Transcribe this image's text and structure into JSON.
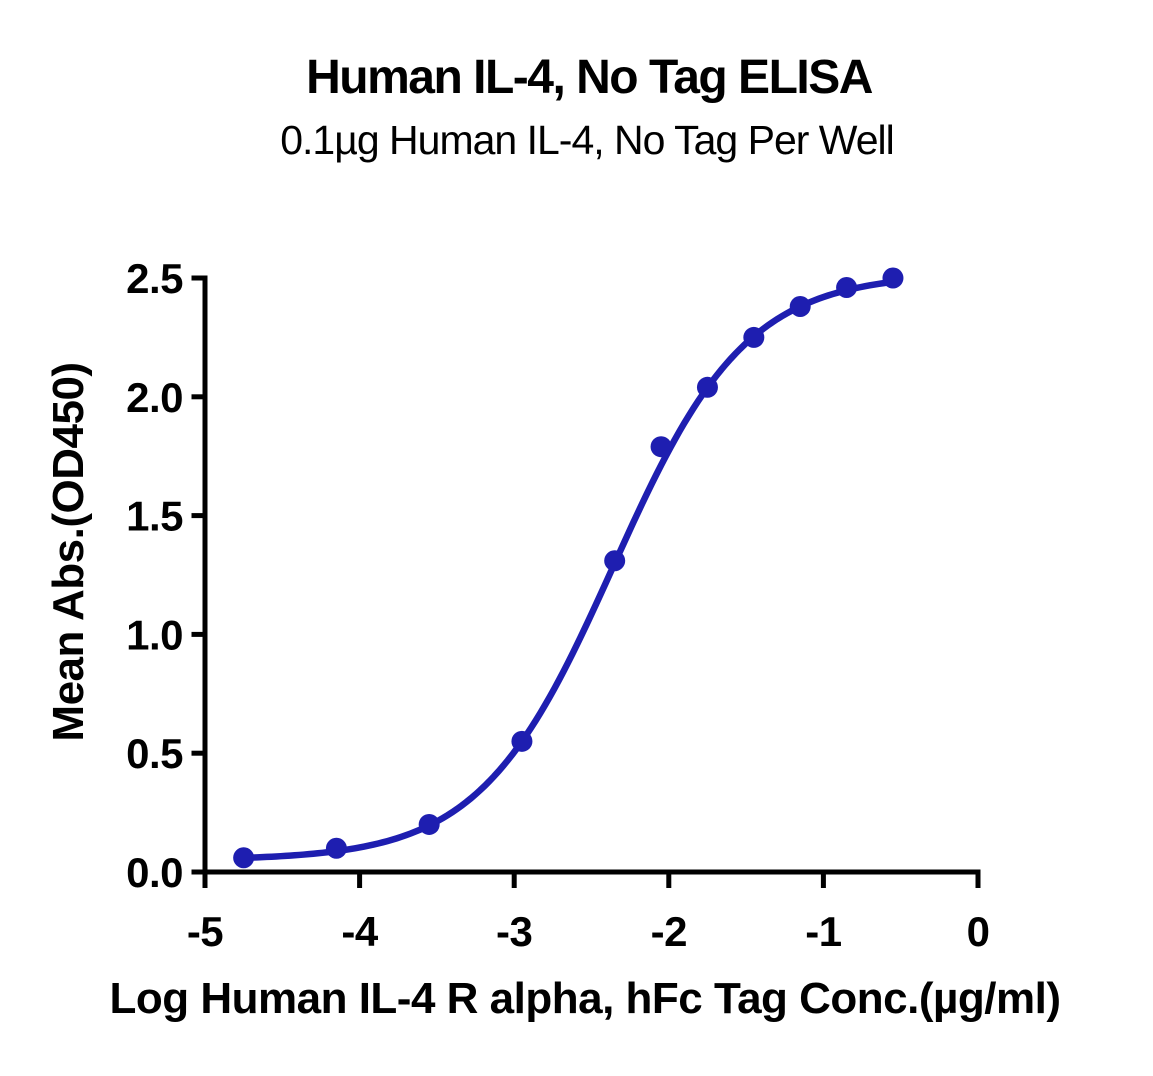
{
  "chart_data": {
    "type": "scatter",
    "title": "Human IL-4, No Tag ELISA",
    "subtitle": "0.1µg Human IL-4, No Tag Per Well",
    "xlabel": "Log Human IL-4 R alpha, hFc Tag Conc.(µg/ml)",
    "ylabel": "Mean Abs.(OD450)",
    "series": [
      {
        "name": "Human IL-4 R alpha, hFc Tag",
        "color": "#1E1EB0",
        "x": [
          -4.75,
          -4.15,
          -3.55,
          -2.95,
          -2.35,
          -2.05,
          -1.75,
          -1.45,
          -1.15,
          -0.85,
          -0.55
        ],
        "y": [
          0.06,
          0.1,
          0.2,
          0.55,
          1.31,
          1.79,
          2.04,
          2.25,
          2.38,
          2.46,
          2.5
        ]
      }
    ],
    "fit": {
      "model": "4PL-sigmoid",
      "bottom": 0.05,
      "top": 2.52,
      "logEC50": -2.36,
      "hillslope": 1.01
    },
    "xlim": [
      -5,
      0
    ],
    "ylim": [
      0,
      2.5
    ],
    "xticks": [
      {
        "v": -5,
        "label": "-5"
      },
      {
        "v": -4,
        "label": "-4"
      },
      {
        "v": -3,
        "label": "-3"
      },
      {
        "v": -2,
        "label": "-2"
      },
      {
        "v": -1,
        "label": "-1"
      },
      {
        "v": 0,
        "label": "0"
      }
    ],
    "yticks": [
      {
        "v": 0.0,
        "label": "0.0"
      },
      {
        "v": 0.5,
        "label": "0.5"
      },
      {
        "v": 1.0,
        "label": "1.0"
      },
      {
        "v": 1.5,
        "label": "1.5"
      },
      {
        "v": 2.0,
        "label": "2.0"
      },
      {
        "v": 2.5,
        "label": "2.5"
      }
    ],
    "grid": false,
    "legend_position": "none",
    "axis_color": "#000000",
    "marker_radius": 10.5,
    "curve_width": 6.5
  }
}
